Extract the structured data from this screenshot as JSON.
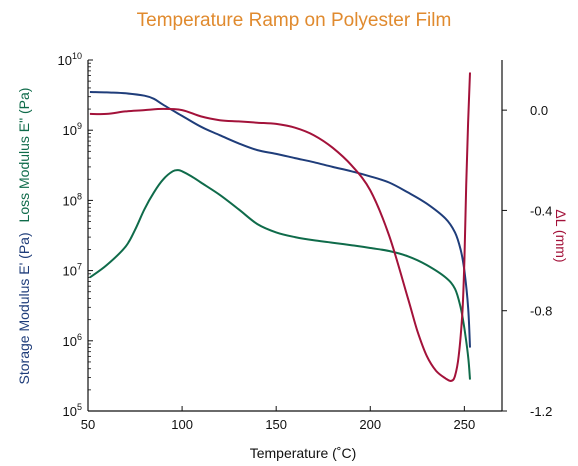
{
  "colors": {
    "title": "#E08A2E",
    "storage": "#1F3D7A",
    "loss": "#0F6B4A",
    "delta": "#A3123A",
    "axis": "#111111"
  },
  "chart_data": {
    "type": "line",
    "title": "Temperature Ramp on Polyester Film",
    "xlabel": "Temperature (˚C)",
    "ylabel_left": "Storage Modulus E' (Pa)",
    "ylabel_left_b": "Loss Modulus E\" (Pa)",
    "ylabel_right": "ΔL (mm)",
    "xlim": [
      50,
      270
    ],
    "x_ticks": [
      "50",
      "100",
      "150",
      "200",
      "250"
    ],
    "ylim_left_log10": [
      5,
      10
    ],
    "y_left_ticks": [
      {
        "base": "10",
        "exp": "10"
      },
      {
        "base": "10",
        "exp": "9"
      },
      {
        "base": "10",
        "exp": "8"
      },
      {
        "base": "10",
        "exp": "7"
      },
      {
        "base": "10",
        "exp": "6"
      },
      {
        "base": "10",
        "exp": "5"
      }
    ],
    "ylim_right": [
      -1.2,
      0.2
    ],
    "y_right_ticks": [
      "0.0",
      "-0.4",
      "-0.8",
      "-1.2"
    ],
    "series": [
      {
        "name": "Storage Modulus E'",
        "axis": "left-log",
        "x": [
          51,
          60,
          70,
          80,
          85,
          90,
          100,
          110,
          120,
          130,
          140,
          150,
          160,
          170,
          180,
          190,
          200,
          210,
          220,
          230,
          240,
          245,
          248,
          250,
          252,
          253
        ],
        "y": [
          3500000000.0,
          3450000000.0,
          3350000000.0,
          3100000000.0,
          2800000000.0,
          2300000000.0,
          1600000000.0,
          1120000000.0,
          850000000.0,
          650000000.0,
          520000000.0,
          460000000.0,
          400000000.0,
          350000000.0,
          300000000.0,
          260000000.0,
          220000000.0,
          180000000.0,
          130000000.0,
          90000000.0,
          55000000.0,
          35000000.0,
          20000000.0,
          10000000.0,
          3000000.0,
          800000.0
        ]
      },
      {
        "name": "Loss Modulus E\"",
        "axis": "left-log",
        "x": [
          51,
          60,
          70,
          75,
          80,
          85,
          90,
          95,
          98,
          100,
          105,
          110,
          120,
          130,
          140,
          150,
          160,
          170,
          180,
          190,
          200,
          210,
          220,
          230,
          240,
          245,
          248,
          250,
          252,
          253
        ],
        "y": [
          8000000.0,
          12000000.0,
          22000000.0,
          38000000.0,
          75000000.0,
          130000000.0,
          200000000.0,
          260000000.0,
          270000000.0,
          260000000.0,
          220000000.0,
          180000000.0,
          120000000.0,
          75000000.0,
          46000000.0,
          35000000.0,
          30000000.0,
          27000000.0,
          25000000.0,
          23000000.0,
          21000000.0,
          19000000.0,
          16000000.0,
          12000000.0,
          8000000.0,
          5500000.0,
          3000000.0,
          1500000.0,
          600000.0,
          280000.0
        ]
      },
      {
        "name": "ΔL",
        "axis": "right",
        "x": [
          51,
          60,
          70,
          80,
          90,
          100,
          110,
          120,
          130,
          140,
          150,
          160,
          170,
          180,
          190,
          200,
          210,
          220,
          225,
          230,
          235,
          240,
          243,
          245,
          247,
          249,
          250,
          251,
          252,
          253
        ],
        "y": [
          -0.015,
          -0.015,
          -0.005,
          0.0,
          0.005,
          0.0,
          -0.025,
          -0.04,
          -0.045,
          -0.05,
          -0.055,
          -0.07,
          -0.1,
          -0.15,
          -0.22,
          -0.32,
          -0.5,
          -0.75,
          -0.88,
          -0.98,
          -1.04,
          -1.07,
          -1.08,
          -1.06,
          -0.98,
          -0.8,
          -0.6,
          -0.3,
          -0.05,
          0.15
        ]
      }
    ]
  }
}
